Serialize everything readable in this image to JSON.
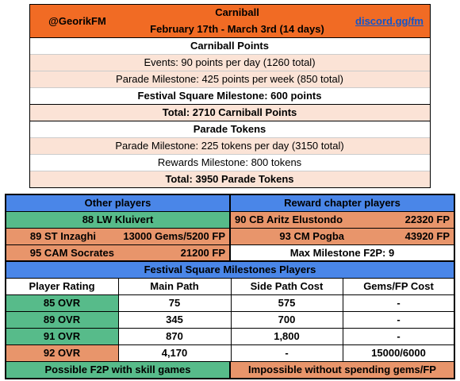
{
  "top": {
    "handle": "@GeorikFM",
    "event_name": "Carniball",
    "dates": "February 17th - March 3rd (14 days)",
    "discord_link": "discord.gg/fm",
    "points_header": "Carniball Points",
    "events_points": "Events: 90 points per day (1260 total)",
    "parade_points": "Parade Milestone: 425 points per week (850 total)",
    "festival_points": "Festival Square Milestone: 600 points",
    "total_points": "Total: 2710 Carniball Points",
    "tokens_header": "Parade Tokens",
    "parade_tokens": "Parade Milestone: 225 tokens per day (3150 total)",
    "rewards_tokens": "Rewards Milestone: 800 tokens",
    "total_tokens": "Total: 3950 Parade Tokens"
  },
  "players": {
    "other_header": "Other players",
    "reward_header": "Reward chapter players",
    "kluivert": "88 LW Kluivert",
    "inzaghi_name": "89 ST Inzaghi",
    "inzaghi_cost": "13000 Gems/5200 FP",
    "socrates_name": "95 CAM Socrates",
    "socrates_cost": "21200 FP",
    "elustondo_name": "90 CB Aritz Elustondo",
    "elustondo_cost": "22320 FP",
    "pogba_name": "93 CM Pogba",
    "pogba_cost": "43920 FP",
    "max_milestone": "Max Milestone F2P: 9"
  },
  "festival": {
    "title": "Festival Square Milestones Players",
    "headers": [
      "Player Rating",
      "Main Path",
      "Side Path Cost",
      "Gems/FP Cost"
    ],
    "rows": [
      [
        "85 OVR",
        "75",
        "575",
        "-"
      ],
      [
        "89 OVR",
        "345",
        "700",
        "-"
      ],
      [
        "91 OVR",
        "870",
        "1,800",
        "-"
      ],
      [
        "92 OVR",
        "4,170",
        "-",
        "15000/6000"
      ]
    ],
    "footer_left": "Possible F2P with skill games",
    "footer_right": "Impossible without spending gems/FP"
  },
  "colors": {
    "orange": "#f16b24",
    "peach": "#fbe3d6",
    "blue": "#4a86e8",
    "green": "#57bb8a",
    "salmon": "#e8956b",
    "link": "#1155cc"
  }
}
